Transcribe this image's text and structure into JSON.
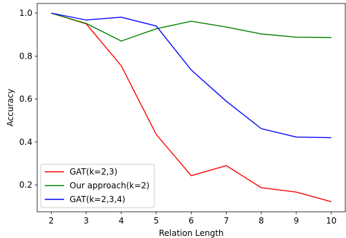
{
  "chart_data": {
    "type": "line",
    "title": "",
    "xlabel": "Relation Length",
    "ylabel": "Accuracy",
    "x": [
      2,
      3,
      4,
      5,
      6,
      7,
      8,
      9,
      10
    ],
    "xlim": [
      1.6,
      10.4
    ],
    "ylim": [
      0.075,
      1.045
    ],
    "xticks": [
      "2",
      "3",
      "4",
      "5",
      "6",
      "7",
      "8",
      "9",
      "10"
    ],
    "yticks": [
      "0.2",
      "0.4",
      "0.6",
      "0.8",
      "1.0"
    ],
    "ytick_values": [
      0.2,
      0.4,
      0.6,
      0.8,
      1.0
    ],
    "grid": false,
    "legend_position": "lower-left",
    "series": [
      {
        "name": "GAT(k=2,3)",
        "color": "#ff0000",
        "values": [
          1.0,
          0.95,
          0.755,
          0.435,
          0.243,
          0.29,
          0.187,
          0.167,
          0.122
        ]
      },
      {
        "name": "Our approach(k=2)",
        "color": "#008000",
        "values": [
          1.0,
          0.952,
          0.87,
          0.927,
          0.962,
          0.935,
          0.903,
          0.888,
          0.886
        ]
      },
      {
        "name": "GAT(k=2,3,4)",
        "color": "#0000ff",
        "values": [
          1.0,
          0.968,
          0.981,
          0.94,
          0.735,
          0.59,
          0.462,
          0.423,
          0.42
        ]
      }
    ]
  }
}
